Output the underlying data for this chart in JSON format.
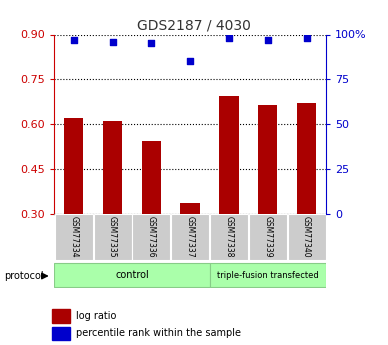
{
  "title": "GDS2187 / 4030",
  "samples": [
    "GSM77334",
    "GSM77335",
    "GSM77336",
    "GSM77337",
    "GSM77338",
    "GSM77339",
    "GSM77340"
  ],
  "log_ratio": [
    0.62,
    0.61,
    0.545,
    0.335,
    0.695,
    0.665,
    0.67
  ],
  "percentile_rank": [
    97,
    96,
    95,
    85,
    98,
    97,
    98
  ],
  "ylim_left": [
    0.3,
    0.9
  ],
  "ylim_right": [
    0,
    100
  ],
  "yticks_left": [
    0.3,
    0.45,
    0.6,
    0.75,
    0.9
  ],
  "yticks_right": [
    0,
    25,
    50,
    75,
    100
  ],
  "bar_color": "#AA0000",
  "dot_color": "#0000CC",
  "control_count": 4,
  "triple_fusion_count": 3,
  "protocol_label": "protocol",
  "legend_log_ratio": "log ratio",
  "legend_percentile": "percentile rank within the sample",
  "grid_color": "#000000",
  "left_tick_color": "#CC0000",
  "right_tick_color": "#0000CC",
  "title_color": "#333333",
  "xtick_bg_color": "#CCCCCC",
  "protocol_bg_color": "#AAFFAA",
  "protocol_border_color": "#88CC88"
}
